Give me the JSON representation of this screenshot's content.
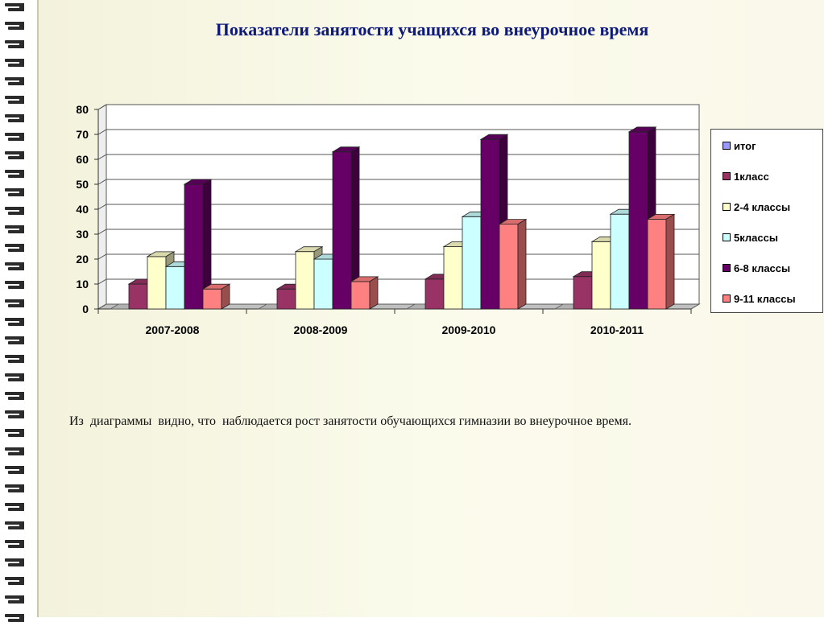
{
  "title": "Показатели занятости учащихся во внеурочное время",
  "caption": "Из  диаграммы  видно, что  наблюдается рост занятости обучающихся гимназии во внеурочное время.",
  "chart_data": {
    "type": "bar",
    "categories": [
      "2007-2008",
      "2008-2009",
      "2009-2010",
      "2010-2011"
    ],
    "ylim": [
      0,
      80
    ],
    "yticks": [
      "0",
      "10",
      "20",
      "30",
      "40",
      "50",
      "60",
      "70",
      "80"
    ],
    "grid": true,
    "legend_position": "right",
    "series": [
      {
        "name": "итог",
        "color": "#9999ff",
        "values": [
          0,
          0,
          0,
          0
        ]
      },
      {
        "name": "1класс",
        "color": "#993366",
        "values": [
          10,
          8,
          12,
          13
        ]
      },
      {
        "name": "2-4 классы",
        "color": "#ffffcc",
        "values": [
          21,
          23,
          25,
          27
        ]
      },
      {
        "name": "5классы",
        "color": "#ccffff",
        "values": [
          17,
          20,
          37,
          38
        ]
      },
      {
        "name": "6-8 классы",
        "color": "#660066",
        "values": [
          50,
          63,
          68,
          71
        ]
      },
      {
        "name": "9-11 классы",
        "color": "#ff8080",
        "values": [
          8,
          11,
          34,
          36
        ]
      }
    ]
  }
}
